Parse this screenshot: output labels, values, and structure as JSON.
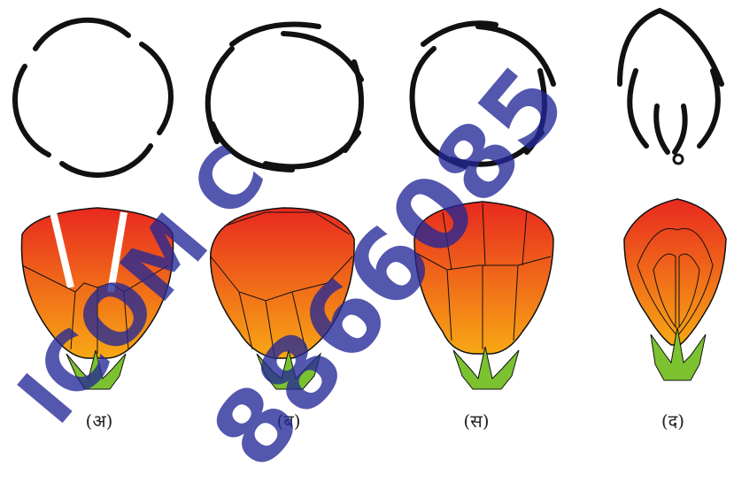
{
  "figure": {
    "captions": {
      "a": "(अ)",
      "b": "(ब)",
      "c": "(स)",
      "d": "(द)"
    },
    "petal_gradient": {
      "top": "#e8291f",
      "bottom": "#f8a814"
    },
    "sepal_color": "#7cc230",
    "outline_color": "#111111"
  },
  "watermark": {
    "line1": "ICOM C",
    "line2": "8866085",
    "color": "#2a2f96"
  }
}
